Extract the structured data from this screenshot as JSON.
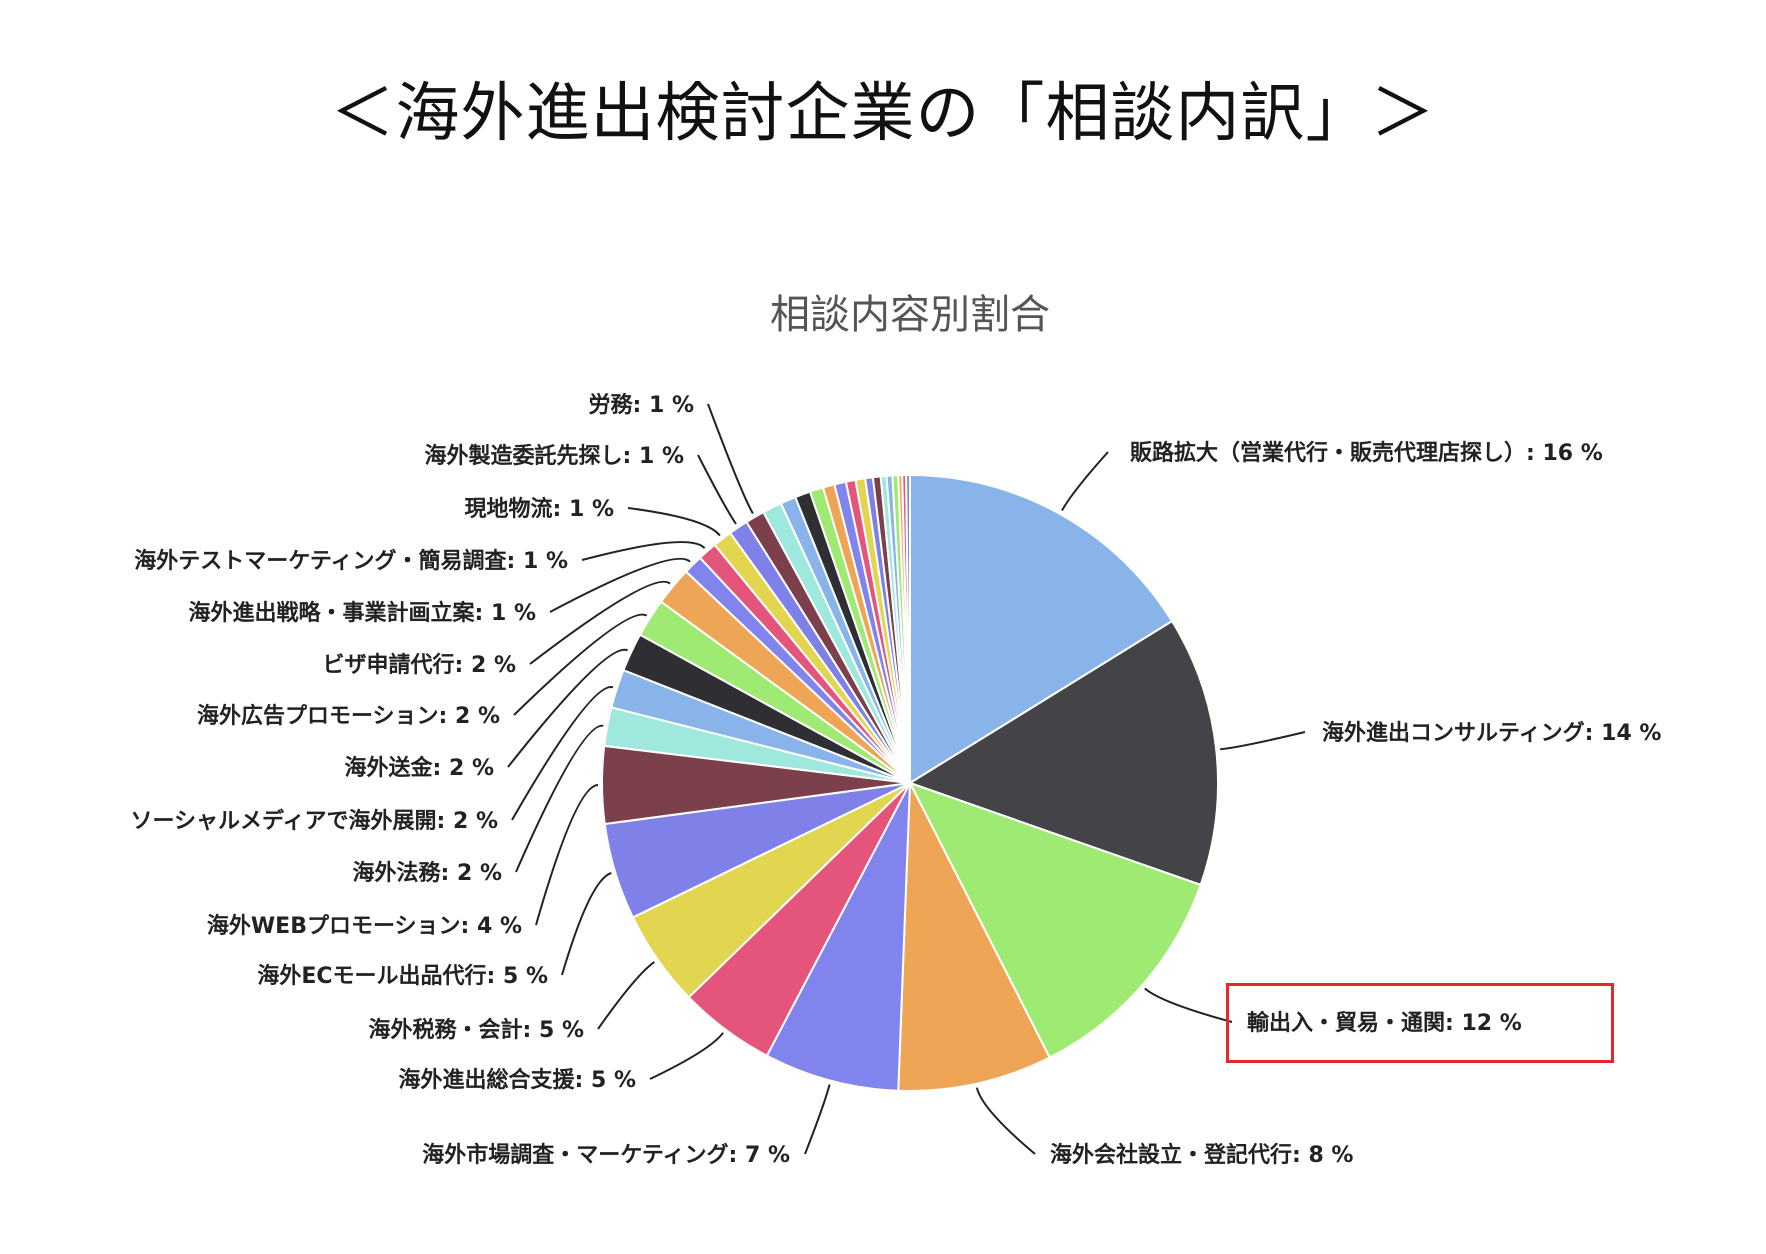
{
  "page_title": "＜海外進出検討企業の「相談内訳」＞",
  "chart_data": {
    "type": "pie",
    "title": "相談内容別割合",
    "slices": [
      {
        "label": "販路拡大（営業代行・販売代理店探し）: 16 %",
        "value": 16,
        "color": "#88b4ea"
      },
      {
        "label": "海外進出コンサルティング: 14 %",
        "value": 14,
        "color": "#434348"
      },
      {
        "label": "輸出入・貿易・通関: 12 %",
        "value": 12,
        "color": "#9eea72"
      },
      {
        "label": "海外会社設立・登記代行: 8 %",
        "value": 8,
        "color": "#eea556"
      },
      {
        "label": "海外市場調査・マーケティング: 7 %",
        "value": 7,
        "color": "#8184ec"
      },
      {
        "label": "海外進出総合支援: 5 %",
        "value": 5,
        "color": "#e5557b"
      },
      {
        "label": "海外税務・会計: 5 %",
        "value": 5,
        "color": "#e2d651"
      },
      {
        "label": "海外ECモール出品代行: 5 %",
        "value": 5,
        "color": "#7f80e8"
      },
      {
        "label": "海外WEBプロモーション: 4 %",
        "value": 4,
        "color": "#7c3f4c"
      },
      {
        "label": "海外法務: 2 %",
        "value": 2,
        "color": "#9ee8de"
      },
      {
        "label": "ソーシャルメディアで海外展開: 2 %",
        "value": 2,
        "color": "#88b4ea"
      },
      {
        "label": "海外送金: 2 %",
        "value": 2,
        "color": "#2f2f33"
      },
      {
        "label": "海外広告プロモーション: 2 %",
        "value": 2,
        "color": "#9eea72"
      },
      {
        "label": "ビザ申請代行: 2 %",
        "value": 2,
        "color": "#eea556"
      },
      {
        "label": "海外進出戦略・事業計画立案: 1 %",
        "value": 1,
        "color": "#8184ec"
      },
      {
        "label": "海外テストマーケティング・簡易調査: 1 %",
        "value": 1,
        "color": "#e5557b"
      },
      {
        "label": "現地物流: 1 %",
        "value": 1,
        "color": "#e2d651"
      },
      {
        "label": "海外製造委託先探し: 1 %",
        "value": 1,
        "color": "#7f80e8"
      },
      {
        "label": "労務: 1 %",
        "value": 1,
        "color": "#7c3f4c"
      }
    ],
    "minor_slices": [
      {
        "value": 1,
        "color": "#9ee8de"
      },
      {
        "value": 0.8,
        "color": "#88b4ea"
      },
      {
        "value": 0.8,
        "color": "#2f2f33"
      },
      {
        "value": 0.7,
        "color": "#9eea72"
      },
      {
        "value": 0.6,
        "color": "#eea556"
      },
      {
        "value": 0.6,
        "color": "#8184ec"
      },
      {
        "value": 0.5,
        "color": "#e5557b"
      },
      {
        "value": 0.5,
        "color": "#e2d651"
      },
      {
        "value": 0.4,
        "color": "#7f80e8"
      },
      {
        "value": 0.4,
        "color": "#7c3f4c"
      },
      {
        "value": 0.3,
        "color": "#9ee8de"
      },
      {
        "value": 0.3,
        "color": "#88b4ea"
      },
      {
        "value": 0.3,
        "color": "#9eea72"
      },
      {
        "value": 0.2,
        "color": "#eea556"
      },
      {
        "value": 0.2,
        "color": "#e5557b"
      },
      {
        "value": 0.2,
        "color": "#8184ec"
      }
    ],
    "highlighted_label": "輸出入・貿易・通関: 12 %",
    "highlight_color": "#e8262b"
  }
}
